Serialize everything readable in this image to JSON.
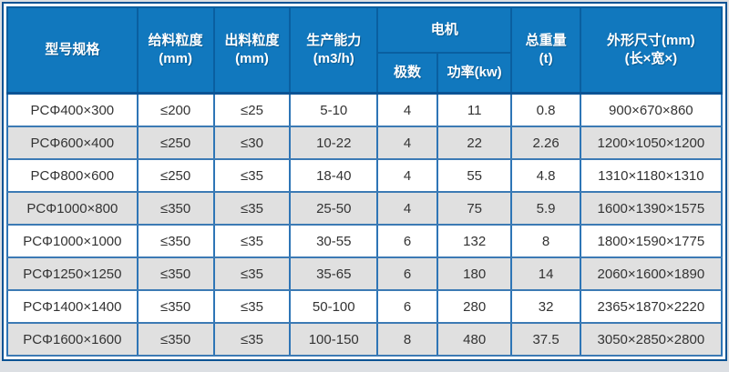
{
  "colors": {
    "header_bg": "#1178be",
    "header_text": "#ffffff",
    "header_divider": "#0a5fa0",
    "outer_border": "#0b5394",
    "grid_border_vertical": "#2e75b6",
    "grid_border_horizontal": "#3c7ab4",
    "row_bg": "#ffffff",
    "row_alt_bg": "#e0e0e0",
    "body_text": "#333333",
    "page_bg": "#dcdfe3"
  },
  "table": {
    "header": {
      "model": "型号规格",
      "feed_size": {
        "line1": "给料粒度",
        "line2": "(mm)"
      },
      "output_size": {
        "line1": "出料粒度",
        "line2": "(mm)"
      },
      "capacity": {
        "line1": "生产能力",
        "line2": "(m3/h)"
      },
      "motor_group": "电机",
      "motor_poles": "极数",
      "motor_power": "功率(kw)",
      "total_weight": {
        "line1": "总重量",
        "line2": "(t)"
      },
      "dimensions": {
        "line1": "外形尺寸(mm)",
        "line2": "(长×宽×)"
      }
    },
    "rows": [
      {
        "cells": [
          "PCΦ400×300",
          "≤200",
          "≤25",
          "5-10",
          "4",
          "11",
          "0.8",
          "900×670×860"
        ]
      },
      {
        "cells": [
          "PCΦ600×400",
          "≤250",
          "≤30",
          "10-22",
          "4",
          "22",
          "2.26",
          "1200×1050×1200"
        ]
      },
      {
        "cells": [
          "PCΦ800×600",
          "≤250",
          "≤35",
          "18-40",
          "4",
          "55",
          "4.8",
          "1310×1180×1310"
        ]
      },
      {
        "cells": [
          "PCΦ1000×800",
          "≤350",
          "≤35",
          "25-50",
          "4",
          "75",
          "5.9",
          "1600×1390×1575"
        ]
      },
      {
        "cells": [
          "PCΦ1000×1000",
          "≤350",
          "≤35",
          "30-55",
          "6",
          "132",
          "8",
          "1800×1590×1775"
        ]
      },
      {
        "cells": [
          "PCΦ1250×1250",
          "≤350",
          "≤35",
          "35-65",
          "6",
          "180",
          "14",
          "2060×1600×1890"
        ]
      },
      {
        "cells": [
          "PCΦ1400×1400",
          "≤350",
          "≤35",
          "50-100",
          "6",
          "280",
          "32",
          "2365×1870×2220"
        ]
      },
      {
        "cells": [
          "PCΦ1600×1600",
          "≤350",
          "≤35",
          "100-150",
          "8",
          "480",
          "37.5",
          "3050×2850×2800"
        ]
      }
    ]
  }
}
